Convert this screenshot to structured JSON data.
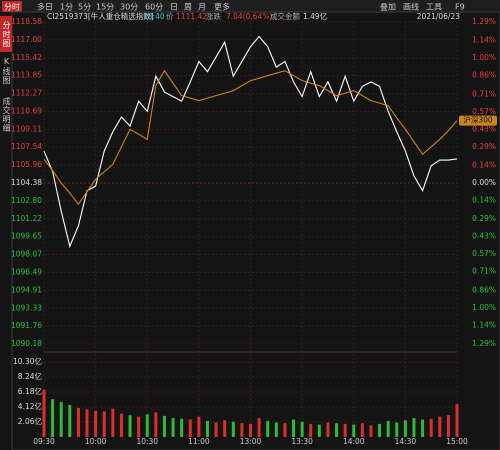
{
  "toolbar": {
    "tabs": [
      "分时",
      "多日",
      "1分",
      "5分",
      "15分",
      "30分",
      "60分",
      "日",
      "周",
      "月",
      "更多"
    ],
    "tools": [
      "叠加",
      "画线",
      "工具",
      "F9"
    ]
  },
  "side_tabs": [
    "分时图",
    "K线图",
    "成交明细"
  ],
  "header": {
    "name": "CI2519373[牛人重仓精选指数]",
    "time": "13:40",
    "price_label": "价",
    "price": "1111.42",
    "change_label": "涨跌",
    "change": "7.04(0.64%)",
    "amount_label": "成交金额",
    "amount": "1.49亿",
    "date": "2021/06/23"
  },
  "chart_data": {
    "type": "line",
    "x": [
      0,
      5,
      10,
      15,
      20,
      25,
      30,
      35,
      40,
      45,
      50,
      55,
      60,
      65,
      70,
      75,
      80,
      85,
      90,
      95,
      100,
      105,
      110,
      115,
      120,
      125,
      130,
      135,
      140,
      145,
      150,
      155,
      160,
      165,
      170,
      175,
      180,
      185,
      190,
      195,
      200,
      205,
      210,
      215,
      220,
      225,
      230,
      235,
      240
    ],
    "xlim": [
      0,
      240
    ],
    "xticks": [
      {
        "value": 0,
        "label": "09:30"
      },
      {
        "value": 30,
        "label": "10:00"
      },
      {
        "value": 60,
        "label": "10:30"
      },
      {
        "value": 90,
        "label": "11:00"
      },
      {
        "value": 120,
        "label": "13:00"
      },
      {
        "value": 150,
        "label": "13:30"
      },
      {
        "value": 180,
        "label": "14:00"
      },
      {
        "value": 210,
        "label": "14:30"
      },
      {
        "value": 240,
        "label": "15:00"
      }
    ],
    "ylim": [
      1090.18,
      1118.58
    ],
    "yticks": [
      1118.58,
      {
        "value": 1117,
        "label": "1117.00"
      },
      1115.42,
      1113.85,
      1112.27,
      1110.69,
      1109.11,
      1107.54,
      1105.96,
      1104.38,
      {
        "value": 1102.8,
        "label": "1102.80"
      },
      1101.22,
      1099.65,
      1098.07,
      1096.49,
      1094.91,
      1093.33,
      1091.76,
      1090.18
    ],
    "y2lim": [
      -1.29,
      1.29
    ],
    "y2ticks": [
      {
        "value": 1.29,
        "label": "1.29%"
      },
      {
        "value": 1.14,
        "label": "1.14%"
      },
      {
        "value": 1.0,
        "label": "1.00%"
      },
      {
        "value": 0.86,
        "label": "0.86%"
      },
      {
        "value": 0.71,
        "label": "0.71%"
      },
      {
        "value": 0.57,
        "label": "0.57%"
      },
      {
        "value": 0.43,
        "label": "0.43%"
      },
      {
        "value": 0.29,
        "label": "0.29%"
      },
      {
        "value": 0.14,
        "label": "0.14%"
      },
      {
        "value": 0,
        "label": "0.00%"
      },
      {
        "value": -0.14,
        "label": "0.14%"
      },
      {
        "value": -0.29,
        "label": "0.29%"
      },
      {
        "value": -0.43,
        "label": "0.43%"
      },
      {
        "value": -0.57,
        "label": "0.57%"
      },
      {
        "value": -0.71,
        "label": "0.71%"
      },
      {
        "value": -0.86,
        "label": "0.86%"
      },
      {
        "value": -1.0,
        "label": "1.00%"
      },
      {
        "value": -1.14,
        "label": "1.14%"
      },
      {
        "value": -1.29,
        "label": "1.29%"
      }
    ],
    "grid": true,
    "series": [
      {
        "color": "#ffffff",
        "values": [
          1107.2,
          1105.4,
          1101.9,
          1098.8,
          1100.6,
          1103.7,
          1104.1,
          1107.2,
          1108.9,
          1110.2,
          1109.4,
          1111.6,
          1110.7,
          1113.8,
          1112.4,
          1112.0,
          1111.6,
          1113.3,
          1115.1,
          1114.2,
          1115.5,
          1116.8,
          1113.8,
          1115.1,
          1116.4,
          1117.3,
          1116.4,
          1114.6,
          1115.1,
          1113.3,
          1112.0,
          1114.2,
          1112.0,
          1113.3,
          1111.6,
          1113.8,
          1111.6,
          1112.9,
          1113.3,
          1112.9,
          1110.7,
          1108.9,
          1107.2,
          1105.0,
          1103.7,
          1105.9,
          1106.4,
          1106.4,
          1106.5
        ]
      },
      {
        "name": "沪深300",
        "color": "#c8861e",
        "axis": "y2",
        "values": [
          0.19,
          0.1,
          0,
          -0.08,
          -0.17,
          -0.07,
          0.03,
          0.09,
          0.15,
          0.29,
          0.43,
          0.39,
          0.35,
          0.78,
          0.9,
          0.8,
          0.7,
          0.68,
          0.66,
          0.68,
          0.7,
          0.72,
          0.74,
          0.78,
          0.82,
          0.84,
          0.86,
          0.88,
          0.9,
          0.86,
          0.82,
          0.8,
          0.78,
          0.74,
          0.7,
          0.72,
          0.74,
          0.7,
          0.66,
          0.64,
          0.62,
          0.52,
          0.43,
          0.33,
          0.23,
          0.29,
          0.35,
          0.42,
          0.5
        ]
      }
    ],
    "volume": {
      "ylim": [
        0,
        10.3
      ],
      "yticks": [
        {
          "value": 10.3,
          "label": "10.30亿"
        },
        {
          "value": 8.24,
          "label": "8.24亿"
        },
        {
          "value": 6.18,
          "label": "6.18亿"
        },
        {
          "value": 4.12,
          "label": "4.12亿"
        },
        {
          "value": 2.06,
          "label": "2.06亿"
        }
      ],
      "values": [
        6.5,
        5.2,
        4.8,
        4.4,
        4.0,
        3.8,
        3.6,
        3.5,
        3.9,
        3.2,
        3.0,
        2.8,
        3.1,
        3.4,
        2.9,
        2.6,
        2.5,
        2.4,
        2.8,
        2.2,
        2.0,
        2.3,
        2.1,
        1.9,
        1.8,
        2.6,
        2.2,
        2.0,
        1.9,
        2.4,
        2.1,
        1.8,
        1.7,
        2.0,
        1.9,
        1.8,
        1.7,
        1.9,
        1.6,
        1.8,
        2.2,
        2.0,
        2.3,
        2.6,
        2.4,
        2.5,
        2.8,
        3.0,
        4.5
      ]
    }
  }
}
